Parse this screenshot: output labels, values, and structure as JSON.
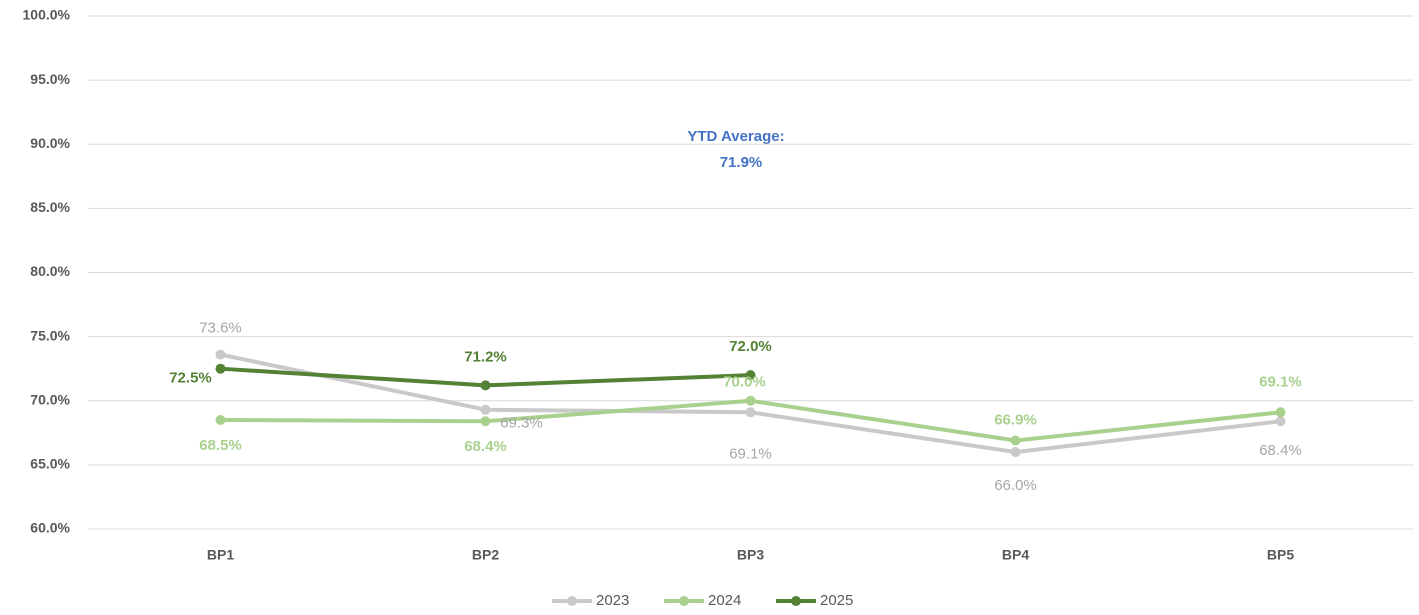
{
  "chart_data": {
    "type": "line",
    "categories": [
      "BP1",
      "BP2",
      "BP3",
      "BP4",
      "BP5"
    ],
    "series": [
      {
        "name": "2023",
        "color": "#c9c9c9",
        "values": [
          73.6,
          69.3,
          69.1,
          66.0,
          68.4
        ],
        "value_labels": [
          "73.6%",
          "69.3%",
          "69.1%",
          "66.0%",
          "68.4%"
        ]
      },
      {
        "name": "2024",
        "color": "#a9d18e",
        "values": [
          68.5,
          68.4,
          70.0,
          66.9,
          69.1
        ],
        "value_labels": [
          "68.5%",
          "68.4%",
          "70.0%",
          "66.9%",
          "69.1%"
        ]
      },
      {
        "name": "2025",
        "color": "#548235",
        "values": [
          72.5,
          71.2,
          72.0,
          null,
          null
        ],
        "value_labels": [
          "72.5%",
          "71.2%",
          "72.0%",
          null,
          null
        ]
      }
    ],
    "ylim": [
      60,
      100
    ],
    "yticks": [
      {
        "value": 60,
        "label": "60.0%"
      },
      {
        "value": 65,
        "label": "65.0%"
      },
      {
        "value": 70,
        "label": "70.0%"
      },
      {
        "value": 75,
        "label": "75.0%"
      },
      {
        "value": 80,
        "label": "80.0%"
      },
      {
        "value": 85,
        "label": "85.0%"
      },
      {
        "value": 90,
        "label": "90.0%"
      },
      {
        "value": 95,
        "label": "95.0%"
      },
      {
        "value": 100,
        "label": "100.0%"
      }
    ],
    "grid": true,
    "legend": "bottom",
    "annotation": {
      "lines": [
        "YTD Average:",
        "71.9%"
      ],
      "color": "#4472c4"
    }
  }
}
